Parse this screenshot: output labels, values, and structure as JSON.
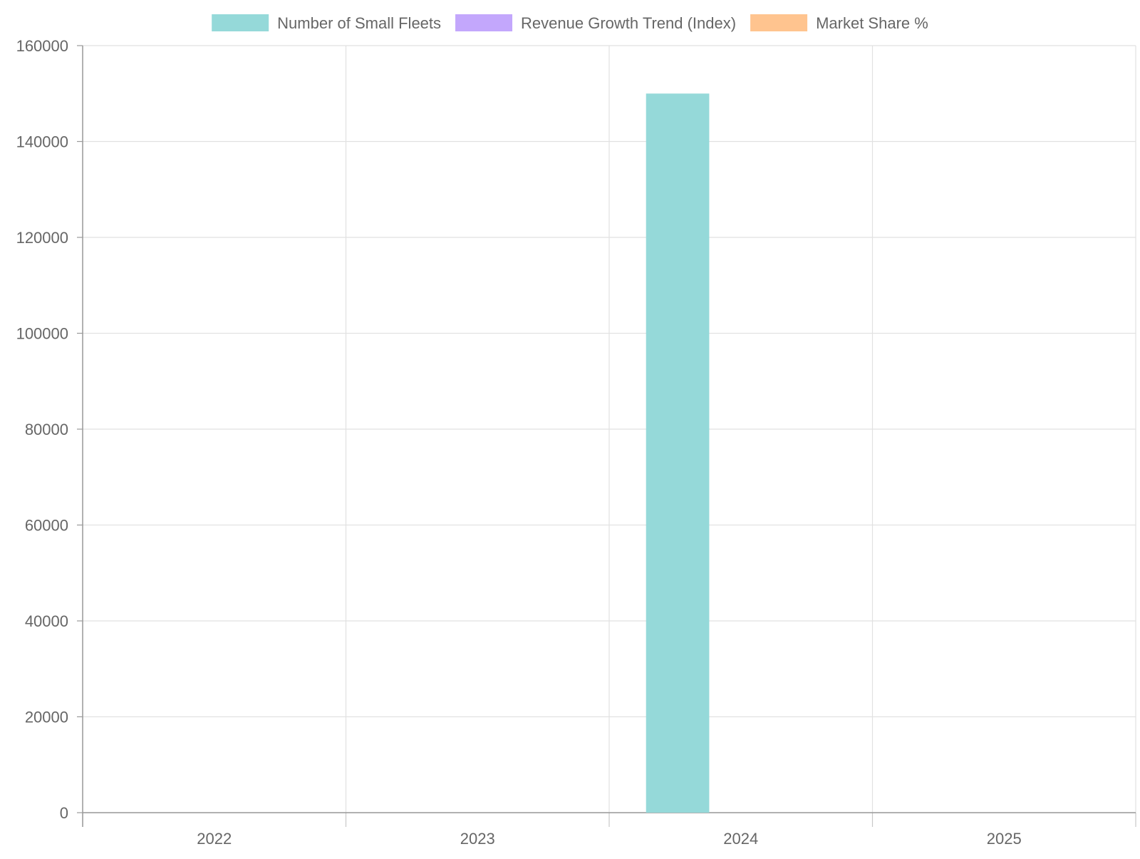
{
  "chart_data": {
    "type": "bar",
    "categories": [
      "2022",
      "2023",
      "2024",
      "2025"
    ],
    "series": [
      {
        "name": "Number of Small Fleets",
        "values": [
          0,
          0,
          150000,
          0
        ],
        "color": "#95d9d9"
      },
      {
        "name": "Revenue Growth Trend (Index)",
        "values": [
          0,
          0,
          0,
          0
        ],
        "color": "#c3a7fc"
      },
      {
        "name": "Market Share %",
        "values": [
          0,
          0,
          0,
          0
        ],
        "color": "#ffc48f"
      }
    ],
    "ylim": [
      0,
      160000
    ],
    "yticks": [
      0,
      20000,
      40000,
      60000,
      80000,
      100000,
      120000,
      140000,
      160000
    ],
    "grid": true,
    "legend": "top-center",
    "title": "",
    "xlabel": "",
    "ylabel": ""
  }
}
